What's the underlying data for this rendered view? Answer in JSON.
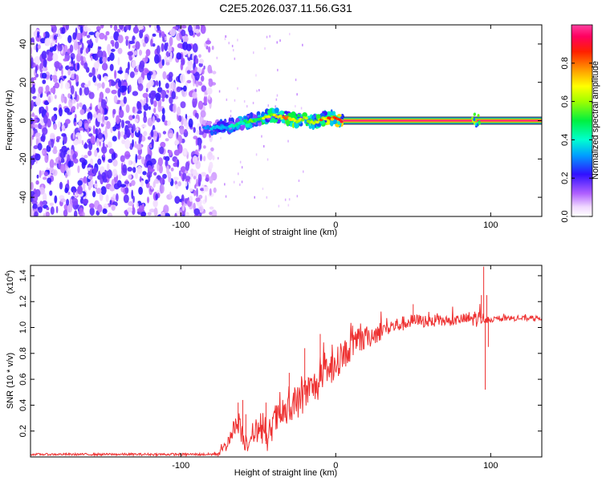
{
  "title": "C2E5.2026.037.11.56.G31",
  "colors": {
    "snr_line": "#ee3030",
    "frame": "#000000"
  },
  "chart_data": [
    {
      "type": "heatmap",
      "name": "spectrogram",
      "xlabel": "Height of straight line (km)",
      "ylabel": "Frequency (Hz)",
      "xlim": [
        -197,
        133
      ],
      "ylim": [
        -50,
        50
      ],
      "xticks": [
        -100,
        0,
        100
      ],
      "xticklabels": [
        "-100",
        "0",
        "100"
      ],
      "yticks": [
        -40,
        -20,
        0,
        20,
        40
      ],
      "yticklabels": [
        "-40",
        "-20",
        "0",
        "20",
        "40"
      ],
      "noise_region_x": [
        -197,
        -78
      ],
      "signal_track": {
        "x": [
          -85,
          -80,
          -70,
          -60,
          -50,
          -40,
          -35,
          -30,
          -25,
          -20,
          -15,
          -10,
          -5,
          0,
          5,
          133
        ],
        "hz": [
          -3,
          -4,
          -3,
          -1,
          1,
          3,
          2,
          1,
          0,
          1,
          -1,
          0,
          2,
          1,
          0,
          0
        ],
        "amplitude": [
          0.3,
          0.35,
          0.4,
          0.5,
          0.6,
          0.75,
          0.85,
          0.8,
          0.7,
          0.7,
          0.75,
          0.8,
          0.85,
          0.9,
          1.0,
          1.0
        ]
      },
      "colorbar": {
        "label": "Normalized spectral amplitude",
        "range": [
          0,
          1
        ],
        "ticks": [
          0.0,
          0.2,
          0.4,
          0.6,
          0.8
        ],
        "ticklabels": [
          "0.0",
          "0.2",
          "0.4",
          "0.6",
          "0.8"
        ]
      }
    },
    {
      "type": "line",
      "name": "snr",
      "xlabel": "Height of straight line (km)",
      "ylabel": "SNR (10 * v/v)",
      "scale_label": "(x10",
      "scale_exp": "4",
      "xlim": [
        -197,
        133
      ],
      "ylim": [
        0,
        1.48
      ],
      "xticks": [
        -100,
        0,
        100
      ],
      "xticklabels": [
        "-100",
        "0",
        "100"
      ],
      "yticks": [
        0.2,
        0.4,
        0.6,
        0.8,
        1.0,
        1.2,
        1.4
      ],
      "yticklabels": [
        "0.2",
        "0.4",
        "0.6",
        "0.8",
        "1.0",
        "1.2",
        "1.4"
      ],
      "trend": {
        "x": [
          -197,
          -80,
          -75,
          -70,
          -65,
          -62,
          -58,
          -55,
          -50,
          -45,
          -40,
          -30,
          -20,
          -10,
          0,
          10,
          20,
          30,
          40,
          50,
          60,
          70,
          80,
          90,
          95,
          100,
          110,
          120,
          133
        ],
        "y": [
          0.02,
          0.02,
          0.03,
          0.1,
          0.25,
          0.22,
          0.12,
          0.15,
          0.22,
          0.1,
          0.28,
          0.35,
          0.48,
          0.58,
          0.72,
          0.85,
          0.92,
          0.98,
          1.02,
          1.05,
          1.05,
          1.05,
          1.06,
          1.07,
          1.07,
          1.06,
          1.07,
          1.07,
          1.07
        ]
      },
      "noise": {
        "x": [
          -197,
          -80,
          -60,
          -40,
          -20,
          0,
          20,
          40,
          60,
          80,
          90,
          100,
          133
        ],
        "y": [
          0.008,
          0.01,
          0.09,
          0.12,
          0.14,
          0.12,
          0.09,
          0.06,
          0.05,
          0.04,
          0.07,
          0.02,
          0.02
        ]
      },
      "spikes": [
        {
          "x": -63,
          "y": 0.42
        },
        {
          "x": -60,
          "y": 0.44
        },
        {
          "x": -58,
          "y": 0.33
        },
        {
          "x": -45,
          "y": 0.42
        },
        {
          "x": -30,
          "y": 0.65
        },
        {
          "x": -20,
          "y": 0.84
        },
        {
          "x": -10,
          "y": 0.95
        },
        {
          "x": 50,
          "y": 1.18
        },
        {
          "x": 94,
          "y": 1.25
        },
        {
          "x": 95.5,
          "y": 1.47
        },
        {
          "x": 96.5,
          "y": 0.52
        },
        {
          "x": 97.5,
          "y": 1.25
        },
        {
          "x": 98.5,
          "y": 0.85
        }
      ]
    }
  ]
}
